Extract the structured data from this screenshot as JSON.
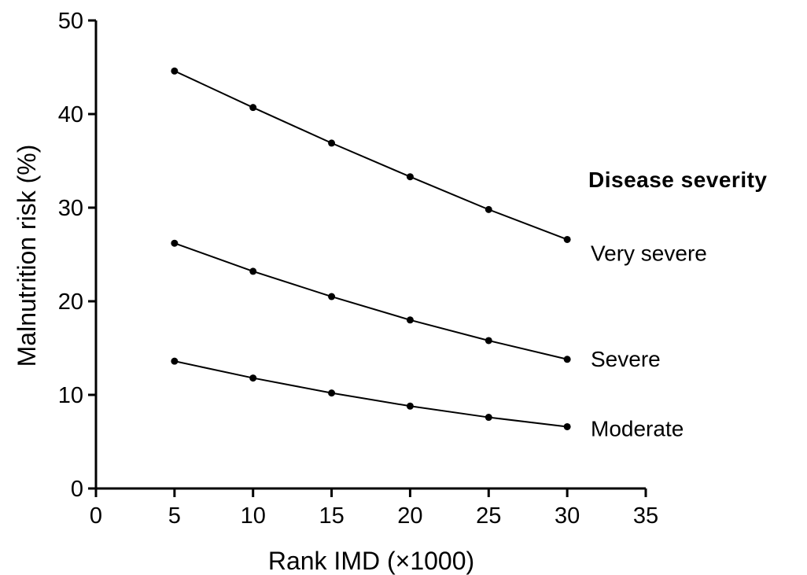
{
  "chart_data": {
    "type": "line",
    "xlabel": "Rank IMD (×1000)",
    "ylabel": "Malnutrition risk (%)",
    "xlim": [
      0,
      35
    ],
    "ylim": [
      0,
      50
    ],
    "xticks": [
      0,
      5,
      10,
      15,
      20,
      25,
      30,
      35
    ],
    "yticks": [
      0,
      10,
      20,
      30,
      40,
      50
    ],
    "grid": false,
    "legend_title": "Disease severity",
    "x": [
      5,
      10,
      15,
      20,
      25,
      30
    ],
    "series": [
      {
        "name": "Very severe",
        "values": [
          44.6,
          40.7,
          36.9,
          33.3,
          29.8,
          26.6
        ]
      },
      {
        "name": "Severe",
        "values": [
          26.2,
          23.2,
          20.5,
          18.0,
          15.8,
          13.8
        ]
      },
      {
        "name": "Moderate",
        "values": [
          13.6,
          11.8,
          10.2,
          8.8,
          7.6,
          6.6
        ]
      }
    ]
  }
}
